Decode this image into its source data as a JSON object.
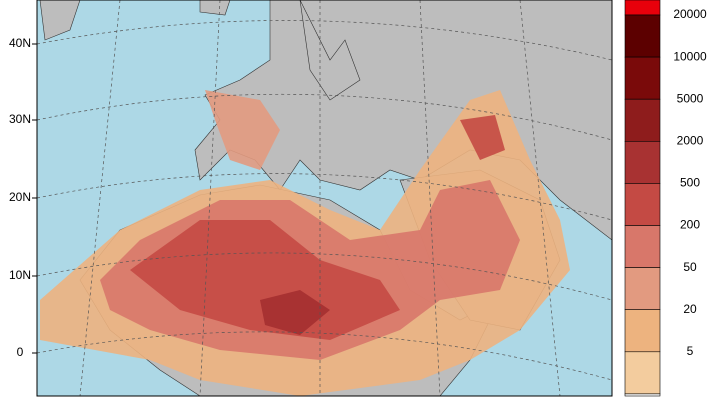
{
  "map": {
    "lat_labels": [
      "40N",
      "30N",
      "20N",
      "10N",
      "0"
    ],
    "legend": {
      "levels": [
        20000,
        10000,
        5000,
        2000,
        500,
        200,
        50,
        20,
        5
      ],
      "colors": [
        "#e8000b",
        "#5c0000",
        "#7a0a0a",
        "#8e1c1c",
        "#a83232",
        "#c44a44",
        "#d8776a",
        "#e29a80",
        "#edb37f",
        "#f3cc9e",
        "#ffffff"
      ]
    }
  }
}
